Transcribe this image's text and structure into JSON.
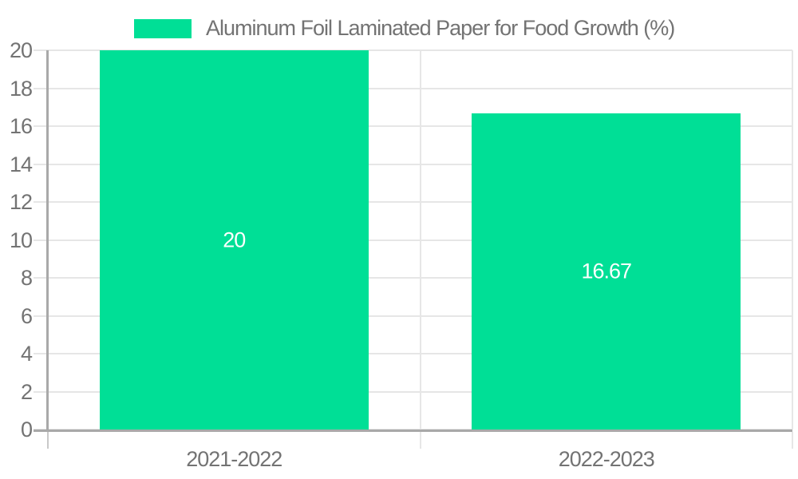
{
  "legend": {
    "label": "Aluminum Foil Laminated Paper for Food Growth (%)"
  },
  "chart_data": {
    "type": "bar",
    "title": "Aluminum Foil Laminated Paper for Food Growth (%)",
    "categories": [
      "2021-2022",
      "2022-2023"
    ],
    "series": [
      {
        "name": "Aluminum Foil Laminated Paper for Food Growth (%)",
        "values": [
          20,
          16.67
        ],
        "data_labels": [
          "20",
          "16.67"
        ]
      }
    ],
    "xlabel": "",
    "ylabel": "",
    "ylim": [
      0,
      20
    ],
    "yticks": [
      "0",
      "2",
      "4",
      "6",
      "8",
      "10",
      "12",
      "14",
      "16",
      "18",
      "20"
    ],
    "grid": true,
    "legend_position": "top-center"
  },
  "colors": {
    "background": "#FFFFFF",
    "bar": "#00DF96",
    "gridline": "#E6E6E6",
    "axis_line": "#A9A9A9",
    "below_axis_tick": "#C9C9C9",
    "label_text": "#737373",
    "value_label": "#FFFFFF"
  }
}
